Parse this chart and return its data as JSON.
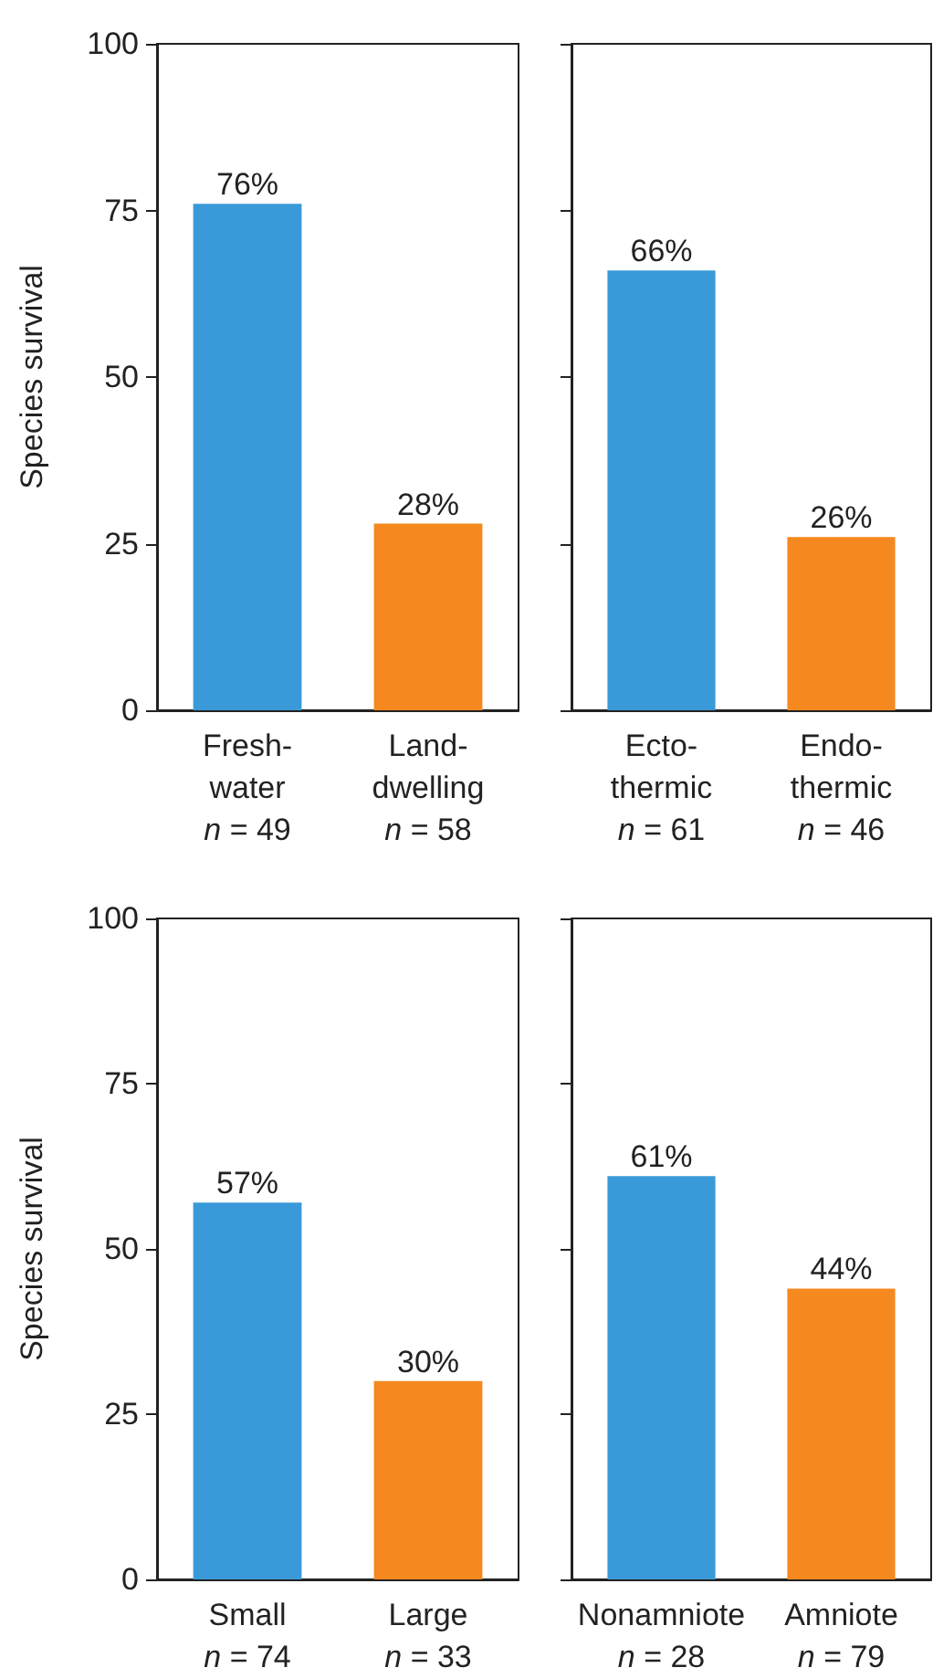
{
  "chart_data": [
    {
      "type": "bar",
      "ylabel": "Species survival",
      "categories": [
        "Fresh-\nwater\nn = 49",
        "Land-\ndwelling\nn = 58"
      ],
      "values": [
        76,
        28
      ],
      "value_labels": [
        "76%",
        "28%"
      ],
      "colors": [
        "#3a9ad9",
        "#f5891f"
      ],
      "ylim": [
        0,
        100
      ],
      "yticks": [
        0,
        25,
        50,
        75,
        100
      ]
    },
    {
      "type": "bar",
      "categories": [
        "Ecto-\nthermic\nn = 61",
        "Endo-\nthermic\nn = 46"
      ],
      "values": [
        66,
        26
      ],
      "value_labels": [
        "66%",
        "26%"
      ],
      "colors": [
        "#3a9ad9",
        "#f5891f"
      ],
      "ylim": [
        0,
        100
      ],
      "yticks": [
        0,
        25,
        50,
        75,
        100
      ],
      "tick_labels": "x"
    },
    {
      "type": "bar",
      "ylabel": "Species survival",
      "categories": [
        "Small\nn = 74",
        "Large\nn = 33"
      ],
      "values": [
        57,
        30
      ],
      "value_labels": [
        "57%",
        "30%"
      ],
      "colors": [
        "#3a9ad9",
        "#f5891f"
      ],
      "ylim": [
        0,
        100
      ],
      "yticks": [
        0,
        25,
        50,
        75,
        100
      ]
    },
    {
      "type": "bar",
      "categories": [
        "Nonamniote\nn = 28",
        "Amniote\nn = 79"
      ],
      "values": [
        61,
        44
      ],
      "value_labels": [
        "61%",
        "44%"
      ],
      "colors": [
        "#3a9ad9",
        "#f5891f"
      ],
      "ylim": [
        0,
        100
      ],
      "yticks": [
        0,
        25,
        50,
        75,
        100
      ],
      "tick_labels": "x"
    }
  ]
}
